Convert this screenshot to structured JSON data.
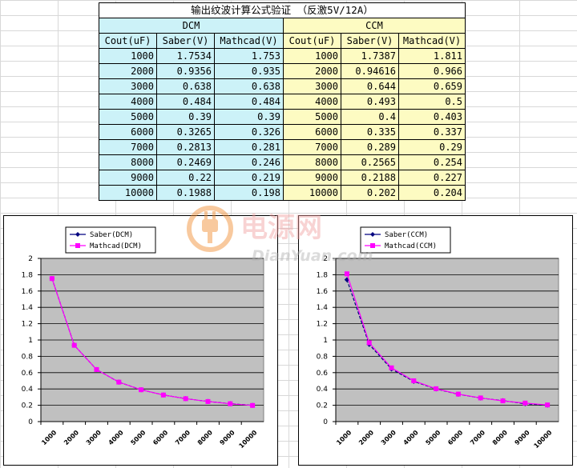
{
  "table": {
    "title": "输出纹波计算公式验证 （反激5V/12A）",
    "group_labels": [
      "DCM",
      "CCM"
    ],
    "columns": [
      "Cout(uF)",
      "Saber(V)",
      "Mathcad(V)",
      "Cout(uF)",
      "Saber(V)",
      "Mathcad(V)"
    ],
    "rows": [
      [
        "1000",
        "1.7534",
        "1.753",
        "1000",
        "1.7387",
        "1.811"
      ],
      [
        "2000",
        "0.9356",
        "0.935",
        "2000",
        "0.94616",
        "0.966"
      ],
      [
        "3000",
        "0.638",
        "0.638",
        "3000",
        "0.644",
        "0.659"
      ],
      [
        "4000",
        "0.484",
        "0.484",
        "4000",
        "0.493",
        "0.5"
      ],
      [
        "5000",
        "0.39",
        "0.39",
        "5000",
        "0.4",
        "0.403"
      ],
      [
        "6000",
        "0.3265",
        "0.326",
        "6000",
        "0.335",
        "0.337"
      ],
      [
        "7000",
        "0.2813",
        "0.281",
        "7000",
        "0.289",
        "0.29"
      ],
      [
        "8000",
        "0.2469",
        "0.246",
        "8000",
        "0.2565",
        "0.254"
      ],
      [
        "9000",
        "0.22",
        "0.219",
        "9000",
        "0.2188",
        "0.227"
      ],
      [
        "10000",
        "0.1988",
        "0.198",
        "10000",
        "0.202",
        "0.204"
      ]
    ]
  },
  "colors": {
    "dcm_fill": "#ccf2f8",
    "ccm_fill": "#fdfbc2",
    "plot_area": "#c0c0c0",
    "saber_series": "#000080",
    "mathcad_series": "#ff00ff"
  },
  "watermark": {
    "text_cn": "电源网",
    "text_en": "DianYuan.com"
  },
  "chart_data": [
    {
      "type": "line",
      "x": [
        "1000",
        "2000",
        "3000",
        "4000",
        "5000",
        "6000",
        "7000",
        "8000",
        "9000",
        "10000"
      ],
      "ylim": [
        0,
        2
      ],
      "yticks": [
        "0",
        "0.2",
        "0.4",
        "0.6",
        "0.8",
        "1",
        "1.2",
        "1.4",
        "1.6",
        "1.8",
        "2"
      ],
      "grid": true,
      "legend_position": "top-left",
      "series": [
        {
          "name": "Saber(DCM)",
          "values": [
            1.7534,
            0.9356,
            0.638,
            0.484,
            0.39,
            0.3265,
            0.2813,
            0.2469,
            0.22,
            0.1988
          ]
        },
        {
          "name": "Mathcad(DCM)",
          "values": [
            1.753,
            0.935,
            0.638,
            0.484,
            0.39,
            0.326,
            0.281,
            0.246,
            0.219,
            0.198
          ]
        }
      ]
    },
    {
      "type": "line",
      "x": [
        "1000",
        "2000",
        "3000",
        "4000",
        "5000",
        "6000",
        "7000",
        "8000",
        "9000",
        "10000"
      ],
      "ylim": [
        0,
        2
      ],
      "yticks": [
        "0",
        "0.2",
        "0.4",
        "0.6",
        "0.8",
        "1",
        "1.2",
        "1.4",
        "1.6",
        "1.8",
        "2"
      ],
      "grid": true,
      "legend_position": "top-left",
      "series": [
        {
          "name": "Saber(CCM)",
          "values": [
            1.7387,
            0.94616,
            0.644,
            0.493,
            0.4,
            0.335,
            0.289,
            0.2565,
            0.2188,
            0.202
          ]
        },
        {
          "name": "Mathcad(CCM)",
          "values": [
            1.811,
            0.966,
            0.659,
            0.5,
            0.403,
            0.337,
            0.29,
            0.254,
            0.227,
            0.204
          ]
        }
      ]
    }
  ]
}
